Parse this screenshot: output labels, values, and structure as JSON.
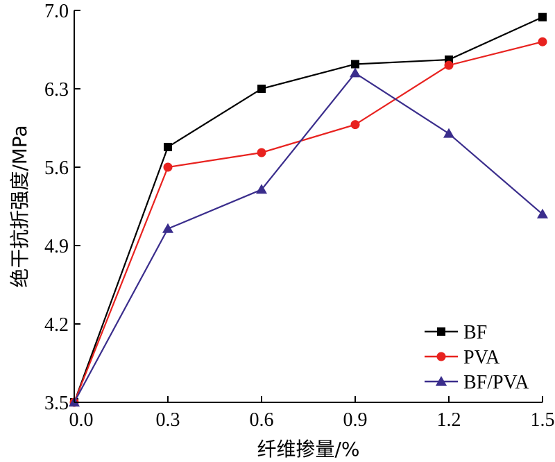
{
  "chart_data": {
    "type": "line",
    "title": "",
    "xlabel": "纤维掺量/%",
    "ylabel": "绝干抗折强度/MPa",
    "x": [
      0.0,
      0.3,
      0.6,
      0.9,
      1.2,
      1.5
    ],
    "xticks": [
      "0.0",
      "0.3",
      "0.6",
      "0.9",
      "1.2",
      "1.5"
    ],
    "yticks": [
      "3.5",
      "4.2",
      "4.9",
      "5.6",
      "6.3",
      "7.0"
    ],
    "xlim": [
      0.0,
      1.5
    ],
    "ylim": [
      3.5,
      7.0
    ],
    "grid": false,
    "legend_position": "bottom-right",
    "series": [
      {
        "name": "BF",
        "values": [
          3.5,
          5.78,
          6.3,
          6.52,
          6.56,
          6.94
        ],
        "color": "#000000",
        "marker": "square"
      },
      {
        "name": "PVA",
        "values": [
          3.5,
          5.6,
          5.73,
          5.98,
          6.51,
          6.72
        ],
        "color": "#e8221f",
        "marker": "circle"
      },
      {
        "name": "BF/PVA",
        "values": [
          3.5,
          5.05,
          5.4,
          6.44,
          5.9,
          5.18
        ],
        "color": "#3a2d8c",
        "marker": "triangle"
      }
    ]
  }
}
